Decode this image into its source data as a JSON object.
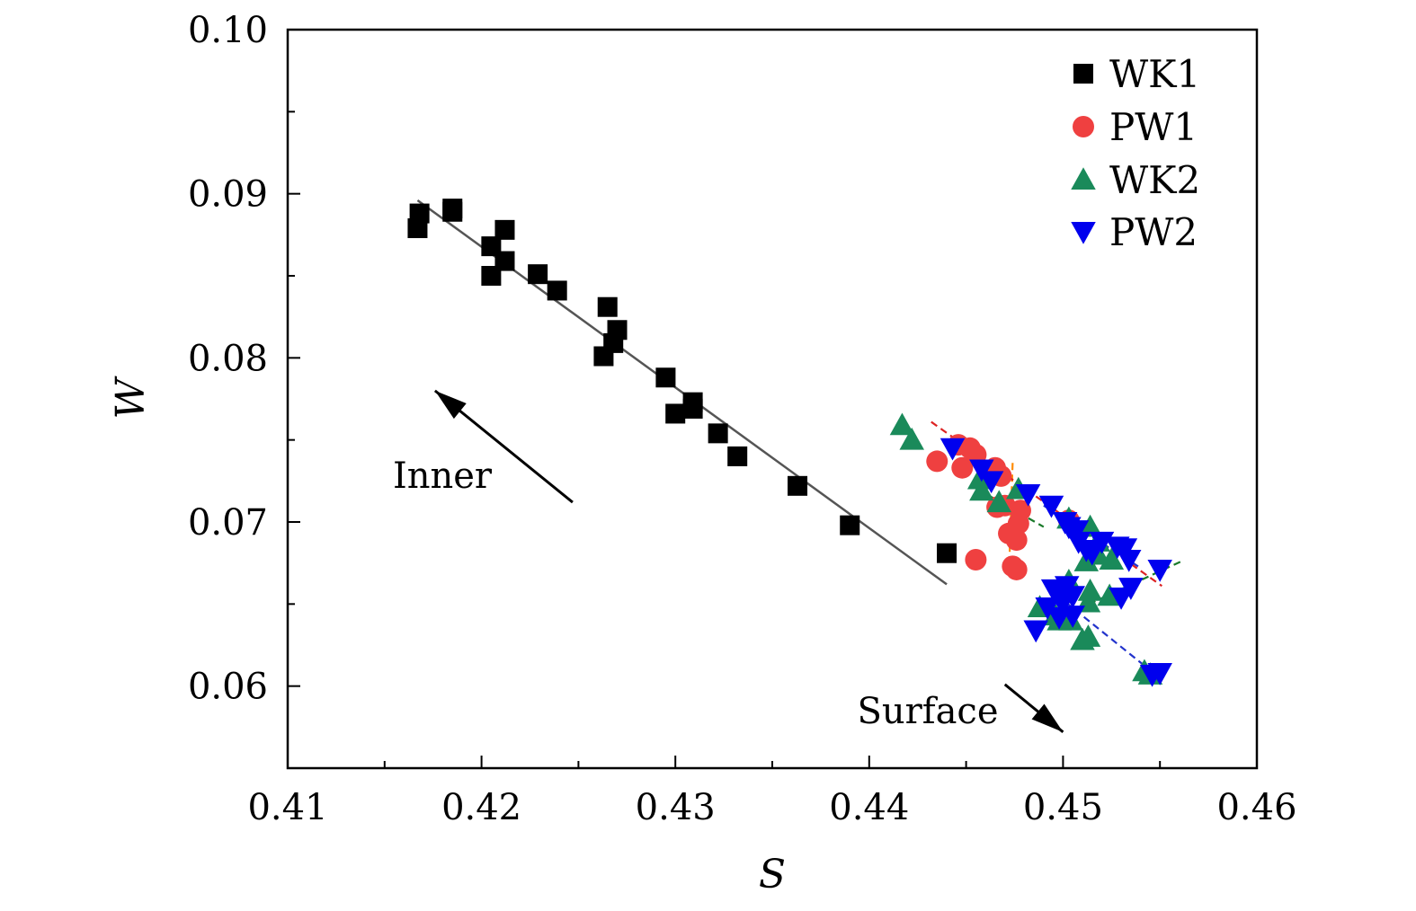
{
  "chart_data": {
    "type": "scatter",
    "title": "",
    "xlabel": "S",
    "ylabel": "W",
    "xlim": [
      0.41,
      0.46
    ],
    "ylim": [
      0.055,
      0.1
    ],
    "x_ticks": [
      0.41,
      0.42,
      0.43,
      0.44,
      0.45,
      0.46
    ],
    "x_tick_labels": [
      "0.41",
      "0.42",
      "0.43",
      "0.44",
      "0.45",
      "0.46"
    ],
    "y_ticks": [
      0.06,
      0.07,
      0.08,
      0.09,
      0.1
    ],
    "y_tick_labels": [
      "0.06",
      "0.07",
      "0.08",
      "0.09",
      "0.10"
    ],
    "grid": false,
    "legend_position": "top-right",
    "series": [
      {
        "name": "WK1",
        "marker": "square",
        "color": "#000000",
        "points": [
          [
            0.4167,
            0.0879
          ],
          [
            0.4168,
            0.0888
          ],
          [
            0.4185,
            0.0889
          ],
          [
            0.4185,
            0.0891
          ],
          [
            0.4205,
            0.0868
          ],
          [
            0.4205,
            0.085
          ],
          [
            0.4212,
            0.0878
          ],
          [
            0.4212,
            0.0859
          ],
          [
            0.4229,
            0.0851
          ],
          [
            0.4239,
            0.0841
          ],
          [
            0.4265,
            0.0831
          ],
          [
            0.4263,
            0.0801
          ],
          [
            0.4268,
            0.0809
          ],
          [
            0.427,
            0.0817
          ],
          [
            0.4295,
            0.0788
          ],
          [
            0.43,
            0.0766
          ],
          [
            0.4309,
            0.0773
          ],
          [
            0.4309,
            0.0769
          ],
          [
            0.4322,
            0.0754
          ],
          [
            0.4332,
            0.074
          ],
          [
            0.4363,
            0.0722
          ],
          [
            0.439,
            0.0698
          ],
          [
            0.444,
            0.0681
          ]
        ]
      },
      {
        "name": "PW1",
        "marker": "circle",
        "color": "#ef4040",
        "points": [
          [
            0.4435,
            0.0737
          ],
          [
            0.4446,
            0.0747
          ],
          [
            0.4452,
            0.0745
          ],
          [
            0.4455,
            0.0741
          ],
          [
            0.4448,
            0.0733
          ],
          [
            0.4465,
            0.0733
          ],
          [
            0.4468,
            0.0728
          ],
          [
            0.4466,
            0.0709
          ],
          [
            0.447,
            0.071
          ],
          [
            0.4478,
            0.0707
          ],
          [
            0.4477,
            0.0699
          ],
          [
            0.4472,
            0.0693
          ],
          [
            0.4476,
            0.0689
          ],
          [
            0.4474,
            0.0673
          ],
          [
            0.4476,
            0.0671
          ],
          [
            0.4455,
            0.0677
          ],
          [
            0.4503,
            0.0701
          ]
        ]
      },
      {
        "name": "WK2",
        "marker": "triangle-up",
        "color": "#1a8a5a",
        "points": [
          [
            0.4417,
            0.0759
          ],
          [
            0.4422,
            0.075
          ],
          [
            0.4457,
            0.0726
          ],
          [
            0.4458,
            0.0719
          ],
          [
            0.4467,
            0.0712
          ],
          [
            0.4477,
            0.072
          ],
          [
            0.4503,
            0.0702
          ],
          [
            0.4514,
            0.0697
          ],
          [
            0.4518,
            0.0688
          ],
          [
            0.4512,
            0.0676
          ],
          [
            0.4518,
            0.068
          ],
          [
            0.4525,
            0.0677
          ],
          [
            0.4503,
            0.0664
          ],
          [
            0.4514,
            0.0658
          ],
          [
            0.4524,
            0.0655
          ],
          [
            0.4488,
            0.0648
          ],
          [
            0.4496,
            0.0643
          ],
          [
            0.4504,
            0.064
          ],
          [
            0.4513,
            0.063
          ],
          [
            0.451,
            0.0628
          ],
          [
            0.4542,
            0.0609
          ],
          [
            0.4545,
            0.0607
          ],
          [
            0.4498,
            0.064
          ],
          [
            0.4513,
            0.0651
          ]
        ]
      },
      {
        "name": "PW2",
        "marker": "triangle-down",
        "color": "#0000ee",
        "points": [
          [
            0.4443,
            0.0745
          ],
          [
            0.4458,
            0.0732
          ],
          [
            0.4463,
            0.0725
          ],
          [
            0.4482,
            0.0717
          ],
          [
            0.4494,
            0.071
          ],
          [
            0.4501,
            0.07
          ],
          [
            0.4503,
            0.0697
          ],
          [
            0.4507,
            0.0695
          ],
          [
            0.4508,
            0.0688
          ],
          [
            0.4512,
            0.0683
          ],
          [
            0.4515,
            0.0681
          ],
          [
            0.452,
            0.0688
          ],
          [
            0.4528,
            0.0685
          ],
          [
            0.4532,
            0.0684
          ],
          [
            0.4534,
            0.0677
          ],
          [
            0.455,
            0.0671
          ],
          [
            0.4535,
            0.066
          ],
          [
            0.453,
            0.0654
          ],
          [
            0.4495,
            0.0659
          ],
          [
            0.4498,
            0.0654
          ],
          [
            0.4502,
            0.0661
          ],
          [
            0.4505,
            0.0655
          ],
          [
            0.4492,
            0.0648
          ],
          [
            0.4498,
            0.0642
          ],
          [
            0.45,
            0.0651
          ],
          [
            0.4505,
            0.0643
          ],
          [
            0.4486,
            0.0634
          ],
          [
            0.4546,
            0.0607
          ],
          [
            0.455,
            0.0608
          ]
        ]
      }
    ],
    "fit_lines": [
      {
        "series": "WK1",
        "color": "#555555",
        "style": "solid",
        "from": [
          0.4167,
          0.0896
        ],
        "to": [
          0.444,
          0.0662
        ]
      },
      {
        "series": "PW1",
        "color": "#ff8c00",
        "style": "dashed",
        "from": [
          0.4474,
          0.0736
        ],
        "to": [
          0.4472,
          0.0665
        ]
      },
      {
        "series": "PW1",
        "color": "#dd2222",
        "style": "dashed",
        "from": [
          0.4432,
          0.0761
        ],
        "to": [
          0.4551,
          0.0661
        ]
      },
      {
        "series": "WK2",
        "color": "#1a7a2a",
        "style": "dashed",
        "from": [
          0.4486,
          0.0635
        ],
        "to": [
          0.4561,
          0.0676
        ]
      },
      {
        "series": "WK2",
        "color": "#1a7a2a",
        "style": "dashed",
        "from": [
          0.4456,
          0.072
        ],
        "to": [
          0.449,
          0.0697
        ]
      },
      {
        "series": "PW2",
        "color": "#2233cc",
        "style": "dashed",
        "from": [
          0.4492,
          0.066
        ],
        "to": [
          0.4553,
          0.0602
        ]
      },
      {
        "series": "PW2",
        "color": "#2233cc",
        "style": "dashed",
        "from": [
          0.449,
          0.071
        ],
        "to": [
          0.454,
          0.0672
        ]
      }
    ],
    "annotations": [
      {
        "text": "Inner",
        "arrow_from": [
          0.4247,
          0.0712
        ],
        "arrow_to": [
          0.4176,
          0.078
        ]
      },
      {
        "text": "Surface",
        "arrow_from": [
          0.447,
          0.0601
        ],
        "arrow_to": [
          0.45,
          0.0572
        ]
      }
    ]
  }
}
